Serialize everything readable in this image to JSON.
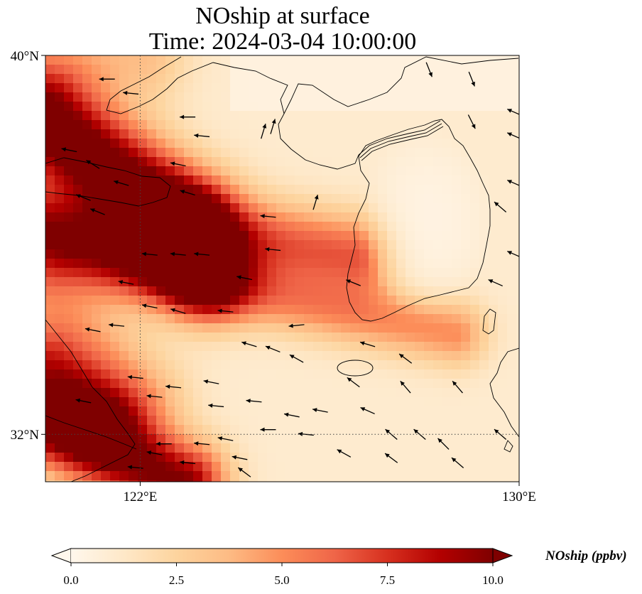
{
  "title": {
    "line1": "NOship at surface",
    "line2": "Time: 2024-03-04 10:00:00"
  },
  "map": {
    "extent": {
      "lon_min": 120,
      "lon_max": 130,
      "lat_min": 31,
      "lat_max": 40
    },
    "x_ticks": [
      {
        "lon": 122,
        "label": "122°E"
      },
      {
        "lon": 130,
        "label": "130°E"
      }
    ],
    "y_ticks": [
      {
        "lat": 40,
        "label": "40°N"
      },
      {
        "lat": 32,
        "label": "32°N"
      }
    ],
    "gridlines": {
      "lons": [
        122
      ],
      "lats": [
        32
      ],
      "style": "dotted"
    },
    "colormap": "OrRd",
    "colors": {
      "low": "#fff7ec",
      "mid": "#fdbb84",
      "high": "#7f0000"
    }
  },
  "colorbar": {
    "label": "NOship (ppbv)",
    "min": 0.0,
    "max": 10.0,
    "extend": "both",
    "ticks": [
      {
        "value": 0.0,
        "label": "0.0"
      },
      {
        "value": 2.5,
        "label": "2.5"
      },
      {
        "value": 5.0,
        "label": "5.0"
      },
      {
        "value": 7.5,
        "label": "7.5"
      },
      {
        "value": 10.0,
        "label": "10.0"
      }
    ]
  },
  "wind_vectors": [
    {
      "lon": 121.3,
      "lat": 39.5,
      "u": -1,
      "v": 0
    },
    {
      "lon": 121.8,
      "lat": 39.2,
      "u": -1,
      "v": 0.1
    },
    {
      "lon": 123.0,
      "lat": 38.7,
      "u": -1,
      "v": 0
    },
    {
      "lon": 123.3,
      "lat": 38.3,
      "u": -1,
      "v": 0.1
    },
    {
      "lon": 120.5,
      "lat": 38.0,
      "u": -1,
      "v": 0.2
    },
    {
      "lon": 121.0,
      "lat": 37.7,
      "u": -0.8,
      "v": 0.5
    },
    {
      "lon": 122.8,
      "lat": 37.7,
      "u": -1,
      "v": 0.2
    },
    {
      "lon": 121.6,
      "lat": 37.3,
      "u": -1,
      "v": 0.3
    },
    {
      "lon": 123.0,
      "lat": 37.1,
      "u": -1,
      "v": 0.3
    },
    {
      "lon": 120.8,
      "lat": 37.0,
      "u": -1,
      "v": 0.4
    },
    {
      "lon": 121.1,
      "lat": 36.7,
      "u": -1,
      "v": 0.4
    },
    {
      "lon": 124.7,
      "lat": 36.6,
      "u": -1,
      "v": 0.1
    },
    {
      "lon": 125.7,
      "lat": 36.9,
      "u": 0.3,
      "v": 1
    },
    {
      "lon": 122.2,
      "lat": 35.8,
      "u": -1,
      "v": 0.1
    },
    {
      "lon": 122.8,
      "lat": 35.8,
      "u": -1,
      "v": 0.1
    },
    {
      "lon": 123.3,
      "lat": 35.8,
      "u": -1,
      "v": 0.1
    },
    {
      "lon": 124.2,
      "lat": 35.3,
      "u": -1,
      "v": 0.2
    },
    {
      "lon": 121.7,
      "lat": 35.2,
      "u": -1,
      "v": 0.2
    },
    {
      "lon": 124.8,
      "lat": 35.9,
      "u": -1,
      "v": 0.1
    },
    {
      "lon": 126.5,
      "lat": 35.2,
      "u": -1,
      "v": 0.4
    },
    {
      "lon": 122.2,
      "lat": 34.7,
      "u": -1,
      "v": 0.2
    },
    {
      "lon": 122.8,
      "lat": 34.6,
      "u": -1,
      "v": 0.3
    },
    {
      "lon": 123.8,
      "lat": 34.6,
      "u": -1,
      "v": 0.1
    },
    {
      "lon": 121.0,
      "lat": 34.2,
      "u": -1,
      "v": 0.2
    },
    {
      "lon": 121.5,
      "lat": 34.3,
      "u": -1,
      "v": 0.1
    },
    {
      "lon": 125.3,
      "lat": 34.3,
      "u": -1,
      "v": -0.1
    },
    {
      "lon": 124.3,
      "lat": 33.9,
      "u": -1,
      "v": 0.3
    },
    {
      "lon": 124.8,
      "lat": 33.8,
      "u": -1,
      "v": 0.4
    },
    {
      "lon": 125.3,
      "lat": 33.6,
      "u": -0.9,
      "v": 0.5
    },
    {
      "lon": 126.8,
      "lat": 33.9,
      "u": -1,
      "v": 0.3
    },
    {
      "lon": 127.6,
      "lat": 33.6,
      "u": -0.8,
      "v": 0.6
    },
    {
      "lon": 121.9,
      "lat": 33.2,
      "u": -1,
      "v": 0.1
    },
    {
      "lon": 122.7,
      "lat": 33.0,
      "u": -1,
      "v": 0.1
    },
    {
      "lon": 123.5,
      "lat": 33.1,
      "u": -1,
      "v": 0.2
    },
    {
      "lon": 124.4,
      "lat": 32.7,
      "u": -1,
      "v": 0.1
    },
    {
      "lon": 126.5,
      "lat": 33.1,
      "u": -0.8,
      "v": 0.6
    },
    {
      "lon": 127.6,
      "lat": 33.0,
      "u": -0.6,
      "v": 0.7
    },
    {
      "lon": 128.7,
      "lat": 33.0,
      "u": -0.6,
      "v": 0.7
    },
    {
      "lon": 120.8,
      "lat": 32.7,
      "u": -1,
      "v": 0.2
    },
    {
      "lon": 122.3,
      "lat": 32.8,
      "u": -1,
      "v": 0.1
    },
    {
      "lon": 123.6,
      "lat": 32.6,
      "u": -1,
      "v": 0.1
    },
    {
      "lon": 125.2,
      "lat": 32.4,
      "u": -1,
      "v": 0.2
    },
    {
      "lon": 125.8,
      "lat": 32.5,
      "u": -1,
      "v": 0.2
    },
    {
      "lon": 126.8,
      "lat": 32.5,
      "u": -0.9,
      "v": 0.4
    },
    {
      "lon": 122.5,
      "lat": 31.8,
      "u": -1,
      "v": 0
    },
    {
      "lon": 123.3,
      "lat": 31.8,
      "u": -1,
      "v": 0.1
    },
    {
      "lon": 123.8,
      "lat": 31.9,
      "u": -1,
      "v": 0.2
    },
    {
      "lon": 124.7,
      "lat": 32.1,
      "u": -1,
      "v": 0
    },
    {
      "lon": 125.5,
      "lat": 32.0,
      "u": -1,
      "v": 0.1
    },
    {
      "lon": 127.3,
      "lat": 32.0,
      "u": -0.7,
      "v": 0.6
    },
    {
      "lon": 127.9,
      "lat": 32.0,
      "u": -0.7,
      "v": 0.6
    },
    {
      "lon": 128.4,
      "lat": 31.8,
      "u": -0.7,
      "v": 0.7
    },
    {
      "lon": 129.6,
      "lat": 32.0,
      "u": -0.7,
      "v": 0.6
    },
    {
      "lon": 122.3,
      "lat": 31.6,
      "u": -1,
      "v": 0.2
    },
    {
      "lon": 123.0,
      "lat": 31.4,
      "u": -1,
      "v": 0.1
    },
    {
      "lon": 124.1,
      "lat": 31.5,
      "u": -1,
      "v": 0.2
    },
    {
      "lon": 126.3,
      "lat": 31.6,
      "u": -0.9,
      "v": 0.5
    },
    {
      "lon": 127.3,
      "lat": 31.5,
      "u": -0.8,
      "v": 0.6
    },
    {
      "lon": 128.7,
      "lat": 31.4,
      "u": -0.7,
      "v": 0.6
    },
    {
      "lon": 121.9,
      "lat": 31.3,
      "u": -1,
      "v": 0.1
    },
    {
      "lon": 124.2,
      "lat": 31.2,
      "u": -0.8,
      "v": 0.6
    },
    {
      "lon": 128.1,
      "lat": 39.7,
      "u": 0.4,
      "v": -1
    },
    {
      "lon": 129.0,
      "lat": 39.5,
      "u": 0.4,
      "v": -1
    },
    {
      "lon": 129.0,
      "lat": 38.6,
      "u": 0.5,
      "v": -1
    },
    {
      "lon": 129.9,
      "lat": 37.3,
      "u": -0.9,
      "v": 0.4
    },
    {
      "lon": 129.6,
      "lat": 36.8,
      "u": -0.7,
      "v": 0.6
    },
    {
      "lon": 129.9,
      "lat": 38.8,
      "u": -0.9,
      "v": 0.4
    },
    {
      "lon": 129.9,
      "lat": 38.3,
      "u": -0.9,
      "v": 0.4
    },
    {
      "lon": 124.8,
      "lat": 38.5,
      "u": 0.3,
      "v": 1
    },
    {
      "lon": 124.6,
      "lat": 38.4,
      "u": 0.3,
      "v": 1
    },
    {
      "lon": 129.9,
      "lat": 35.8,
      "u": -0.9,
      "v": 0.4
    },
    {
      "lon": 129.5,
      "lat": 35.2,
      "u": -0.9,
      "v": 0.4
    }
  ]
}
